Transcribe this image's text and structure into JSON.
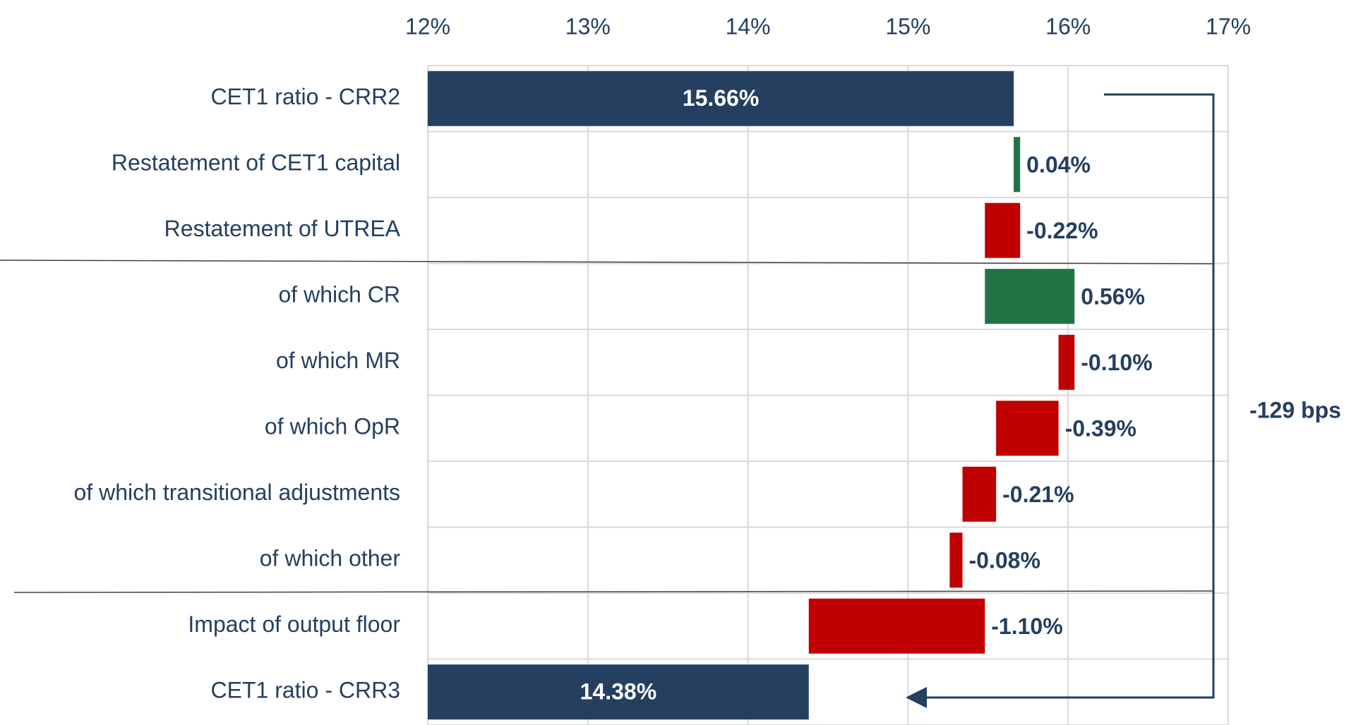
{
  "chart_data": {
    "type": "waterfall",
    "categories": [
      "CET1 ratio - CRR2",
      "Restatement of CET1 capital",
      "Restatement of UTREA",
      "of which CR",
      "of which MR",
      "of which OpR",
      "of which transitional adjustments",
      "of which other",
      "Impact of output floor",
      "CET1 ratio - CRR3"
    ],
    "values": [
      15.66,
      0.04,
      -0.22,
      0.56,
      -0.1,
      -0.39,
      -0.21,
      -0.08,
      -1.1,
      14.38
    ],
    "value_labels": [
      "15.66%",
      "0.04%",
      "-0.22%",
      "0.56%",
      "-0.10%",
      "-0.39%",
      "-0.21%",
      "-0.08%",
      "-1.10%",
      "14.38%"
    ],
    "measure": [
      "absolute",
      "relative",
      "relative",
      "breakdown",
      "breakdown",
      "breakdown",
      "breakdown",
      "breakdown",
      "relative",
      "absolute"
    ],
    "colors": {
      "total": "#243f60",
      "increase": "#217346",
      "decrease": "#c00000"
    },
    "xlim": [
      12,
      17
    ],
    "xticks": [
      {
        "value": 12,
        "label": "12%"
      },
      {
        "value": 13,
        "label": "13%"
      },
      {
        "value": 14,
        "label": "14%"
      },
      {
        "value": 15,
        "label": "15%"
      },
      {
        "value": 16,
        "label": "16%"
      },
      {
        "value": 17,
        "label": "17%"
      }
    ],
    "grid": true,
    "annotation": "-129 bps"
  }
}
